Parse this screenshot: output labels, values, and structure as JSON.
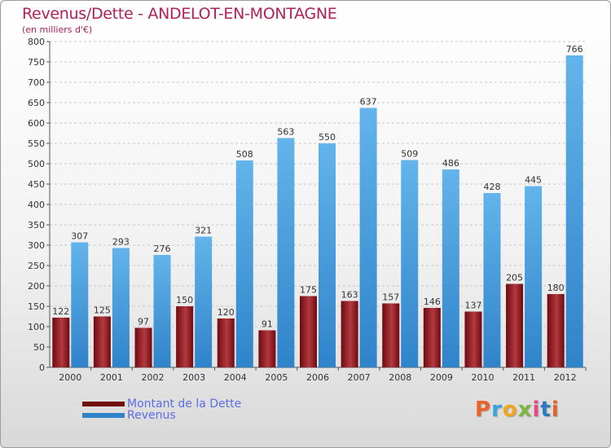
{
  "colors": {
    "dette": "#6e0a10",
    "dette_light": "#b23a3f",
    "revenus": "#2f83c9",
    "revenus_light": "#63b4ea",
    "title": "#b0205a",
    "legend_text": "#5b6ee6"
  },
  "logo": {
    "text": "Proxiti",
    "letter_colors": [
      "#e8632a",
      "#3aa3d8",
      "#f2a51f",
      "#7ab642",
      "#e04c8a",
      "#2e79c2",
      "#e8632a"
    ]
  },
  "chart_data": {
    "type": "bar",
    "title": "Revenus/Dette - ANDELOT-EN-MONTAGNE",
    "subtitle": "(en milliers d'€)",
    "xlabel": "",
    "ylabel": "",
    "ylim": [
      0,
      800
    ],
    "yticks": [
      0,
      50,
      100,
      150,
      200,
      250,
      300,
      350,
      400,
      450,
      500,
      550,
      600,
      650,
      700,
      750,
      800
    ],
    "grid": true,
    "legend_position": "bottom-left",
    "categories": [
      "2000",
      "2001",
      "2002",
      "2003",
      "2004",
      "2005",
      "2006",
      "2007",
      "2008",
      "2009",
      "2010",
      "2011",
      "2012"
    ],
    "series": [
      {
        "name": "Montant de la Dette",
        "values": [
          122,
          125,
          97,
          150,
          120,
          91,
          175,
          163,
          157,
          146,
          137,
          205,
          180
        ]
      },
      {
        "name": "Revenus",
        "values": [
          307,
          293,
          276,
          321,
          508,
          563,
          550,
          637,
          509,
          486,
          428,
          445,
          766
        ]
      }
    ]
  }
}
